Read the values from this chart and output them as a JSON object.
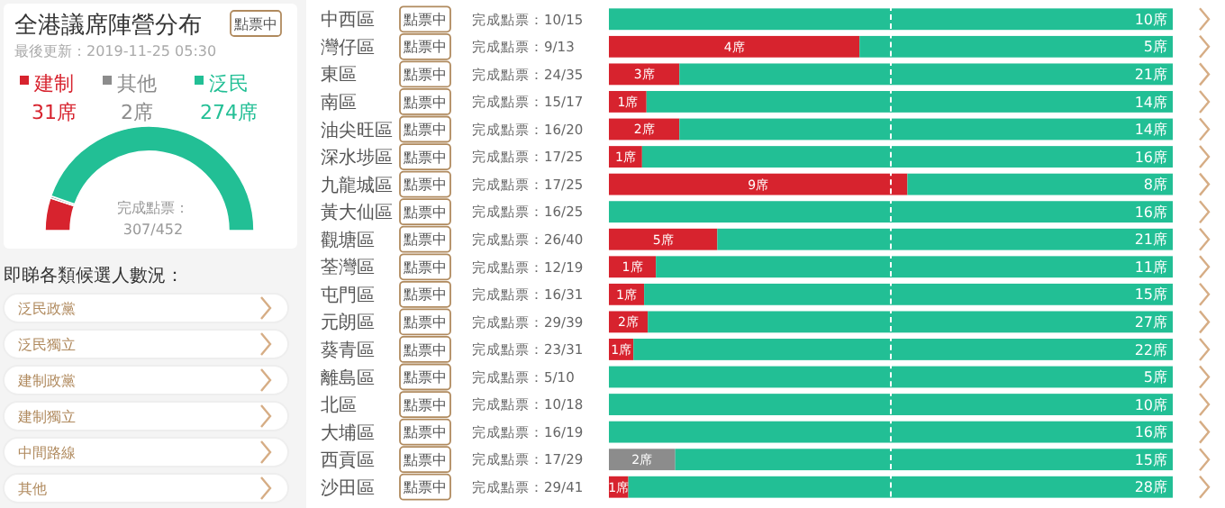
{
  "chart_data": [
    {
      "type": "donut",
      "title": "全港議席陣營分布",
      "subtitle": "最後更新：2019-11-25 05:30",
      "categories": [
        "建制",
        "其他",
        "泛民"
      ],
      "values": [
        31,
        2,
        274
      ],
      "colors": [
        "#d7232e",
        "#8c8c8c",
        "#22bf95"
      ],
      "value_labels": [
        "31席",
        "2席",
        "274席"
      ],
      "legend": "top",
      "annotations": [
        "點票中",
        "完成點票：307/452"
      ]
    },
    {
      "type": "other",
      "title": "即睇各類候選人數況：",
      "annotations": [
        "泛民政黨",
        "泛民獨立",
        "建制政黨",
        "建制獨立",
        "中間路線",
        "其他"
      ]
    },
    {
      "type": "bar",
      "orientation": "horizontal",
      "stacked": true,
      "categories": [
        "中西區"
      ],
      "series": [
        {
          "color": "#22bf95",
          "values": [
            10
          ],
          "value_labels": [
            "10席"
          ]
        }
      ],
      "ref_lines": [
        {
          "axis": "x",
          "value": 5,
          "color": "#ffffff",
          "line_style": "dashed"
        }
      ],
      "annotations": [
        "點票中",
        "完成點票：10/15"
      ]
    },
    {
      "type": "bar",
      "orientation": "horizontal",
      "stacked": true,
      "categories": [
        "灣仔區"
      ],
      "series": [
        {
          "color": "#d7232e",
          "values": [
            4
          ],
          "value_labels": [
            "4席"
          ]
        },
        {
          "color": "#22bf95",
          "values": [
            5
          ],
          "value_labels": [
            "5席"
          ]
        }
      ],
      "ref_lines": [
        {
          "axis": "x",
          "value": 4.5,
          "color": "#ffffff",
          "line_style": "dashed"
        }
      ],
      "annotations": [
        "點票中",
        "完成點票：9/13"
      ]
    },
    {
      "type": "bar",
      "orientation": "horizontal",
      "stacked": true,
      "categories": [
        "東區"
      ],
      "series": [
        {
          "color": "#d7232e",
          "values": [
            3
          ],
          "value_labels": [
            "3席"
          ]
        },
        {
          "color": "#22bf95",
          "values": [
            21
          ],
          "value_labels": [
            "21席"
          ]
        }
      ],
      "ref_lines": [
        {
          "axis": "x",
          "value": 12,
          "color": "#ffffff",
          "line_style": "dashed"
        }
      ],
      "annotations": [
        "點票中",
        "完成點票：24/35"
      ]
    },
    {
      "type": "bar",
      "orientation": "horizontal",
      "stacked": true,
      "categories": [
        "南區"
      ],
      "series": [
        {
          "color": "#d7232e",
          "values": [
            1
          ],
          "value_labels": [
            "1席"
          ]
        },
        {
          "color": "#22bf95",
          "values": [
            14
          ],
          "value_labels": [
            "14席"
          ]
        }
      ],
      "ref_lines": [
        {
          "axis": "x",
          "value": 7.5,
          "color": "#ffffff",
          "line_style": "dashed"
        }
      ],
      "annotations": [
        "點票中",
        "完成點票：15/17"
      ]
    },
    {
      "type": "bar",
      "orientation": "horizontal",
      "stacked": true,
      "categories": [
        "油尖旺區"
      ],
      "series": [
        {
          "color": "#d7232e",
          "values": [
            2
          ],
          "value_labels": [
            "2席"
          ]
        },
        {
          "color": "#22bf95",
          "values": [
            14
          ],
          "value_labels": [
            "14席"
          ]
        }
      ],
      "ref_lines": [
        {
          "axis": "x",
          "value": 8,
          "color": "#ffffff",
          "line_style": "dashed"
        }
      ],
      "annotations": [
        "點票中",
        "完成點票：16/20"
      ]
    },
    {
      "type": "bar",
      "orientation": "horizontal",
      "stacked": true,
      "categories": [
        "深水埗區"
      ],
      "series": [
        {
          "color": "#d7232e",
          "values": [
            1
          ],
          "value_labels": [
            "1席"
          ]
        },
        {
          "color": "#22bf95",
          "values": [
            16
          ],
          "value_labels": [
            "16席"
          ]
        }
      ],
      "ref_lines": [
        {
          "axis": "x",
          "value": 8.5,
          "color": "#ffffff",
          "line_style": "dashed"
        }
      ],
      "annotations": [
        "點票中",
        "完成點票：17/25"
      ]
    },
    {
      "type": "bar",
      "orientation": "horizontal",
      "stacked": true,
      "categories": [
        "九龍城區"
      ],
      "series": [
        {
          "color": "#d7232e",
          "values": [
            9
          ],
          "value_labels": [
            "9席"
          ]
        },
        {
          "color": "#22bf95",
          "values": [
            8
          ],
          "value_labels": [
            "8席"
          ]
        }
      ],
      "ref_lines": [
        {
          "axis": "x",
          "value": 8.5,
          "color": "#ffffff",
          "line_style": "dashed"
        }
      ],
      "annotations": [
        "點票中",
        "完成點票：17/25"
      ]
    },
    {
      "type": "bar",
      "orientation": "horizontal",
      "stacked": true,
      "categories": [
        "黃大仙區"
      ],
      "series": [
        {
          "color": "#22bf95",
          "values": [
            16
          ],
          "value_labels": [
            "16席"
          ]
        }
      ],
      "ref_lines": [
        {
          "axis": "x",
          "value": 8,
          "color": "#ffffff",
          "line_style": "dashed"
        }
      ],
      "annotations": [
        "點票中",
        "完成點票：16/25"
      ]
    },
    {
      "type": "bar",
      "orientation": "horizontal",
      "stacked": true,
      "categories": [
        "觀塘區"
      ],
      "series": [
        {
          "color": "#d7232e",
          "values": [
            5
          ],
          "value_labels": [
            "5席"
          ]
        },
        {
          "color": "#22bf95",
          "values": [
            21
          ],
          "value_labels": [
            "21席"
          ]
        }
      ],
      "ref_lines": [
        {
          "axis": "x",
          "value": 13,
          "color": "#ffffff",
          "line_style": "dashed"
        }
      ],
      "annotations": [
        "點票中",
        "完成點票：26/40"
      ]
    },
    {
      "type": "bar",
      "orientation": "horizontal",
      "stacked": true,
      "categories": [
        "荃灣區"
      ],
      "series": [
        {
          "color": "#d7232e",
          "values": [
            1
          ],
          "value_labels": [
            "1席"
          ]
        },
        {
          "color": "#22bf95",
          "values": [
            11
          ],
          "value_labels": [
            "11席"
          ]
        }
      ],
      "ref_lines": [
        {
          "axis": "x",
          "value": 6,
          "color": "#ffffff",
          "line_style": "dashed"
        }
      ],
      "annotations": [
        "點票中",
        "完成點票：12/19"
      ]
    },
    {
      "type": "bar",
      "orientation": "horizontal",
      "stacked": true,
      "categories": [
        "屯門區"
      ],
      "series": [
        {
          "color": "#d7232e",
          "values": [
            1
          ],
          "value_labels": [
            "1席"
          ]
        },
        {
          "color": "#22bf95",
          "values": [
            15
          ],
          "value_labels": [
            "15席"
          ]
        }
      ],
      "ref_lines": [
        {
          "axis": "x",
          "value": 8,
          "color": "#ffffff",
          "line_style": "dashed"
        }
      ],
      "annotations": [
        "點票中",
        "完成點票：16/31"
      ]
    },
    {
      "type": "bar",
      "orientation": "horizontal",
      "stacked": true,
      "categories": [
        "元朗區"
      ],
      "series": [
        {
          "color": "#d7232e",
          "values": [
            2
          ],
          "value_labels": [
            "2席"
          ]
        },
        {
          "color": "#22bf95",
          "values": [
            27
          ],
          "value_labels": [
            "27席"
          ]
        }
      ],
      "ref_lines": [
        {
          "axis": "x",
          "value": 14.5,
          "color": "#ffffff",
          "line_style": "dashed"
        }
      ],
      "annotations": [
        "點票中",
        "完成點票：29/39"
      ]
    },
    {
      "type": "bar",
      "orientation": "horizontal",
      "stacked": true,
      "categories": [
        "葵青區"
      ],
      "series": [
        {
          "color": "#d7232e",
          "values": [
            1
          ],
          "value_labels": [
            "1席"
          ]
        },
        {
          "color": "#22bf95",
          "values": [
            22
          ],
          "value_labels": [
            "22席"
          ]
        }
      ],
      "ref_lines": [
        {
          "axis": "x",
          "value": 11.5,
          "color": "#ffffff",
          "line_style": "dashed"
        }
      ],
      "annotations": [
        "點票中",
        "完成點票：23/31"
      ]
    },
    {
      "type": "bar",
      "orientation": "horizontal",
      "stacked": true,
      "categories": [
        "離島區"
      ],
      "series": [
        {
          "color": "#22bf95",
          "values": [
            5
          ],
          "value_labels": [
            "5席"
          ]
        }
      ],
      "ref_lines": [
        {
          "axis": "x",
          "value": 2.5,
          "color": "#ffffff",
          "line_style": "dashed"
        }
      ],
      "annotations": [
        "點票中",
        "完成點票：5/10"
      ]
    },
    {
      "type": "bar",
      "orientation": "horizontal",
      "stacked": true,
      "categories": [
        "北區"
      ],
      "series": [
        {
          "color": "#22bf95",
          "values": [
            10
          ],
          "value_labels": [
            "10席"
          ]
        }
      ],
      "ref_lines": [
        {
          "axis": "x",
          "value": 5,
          "color": "#ffffff",
          "line_style": "dashed"
        }
      ],
      "annotations": [
        "點票中",
        "完成點票：10/18"
      ]
    },
    {
      "type": "bar",
      "orientation": "horizontal",
      "stacked": true,
      "categories": [
        "大埔區"
      ],
      "series": [
        {
          "color": "#22bf95",
          "values": [
            16
          ],
          "value_labels": [
            "16席"
          ]
        }
      ],
      "ref_lines": [
        {
          "axis": "x",
          "value": 8,
          "color": "#ffffff",
          "line_style": "dashed"
        }
      ],
      "annotations": [
        "點票中",
        "完成點票：16/19"
      ]
    },
    {
      "type": "bar",
      "orientation": "horizontal",
      "stacked": true,
      "categories": [
        "西貢區"
      ],
      "series": [
        {
          "color": "#8c8c8c",
          "values": [
            2
          ],
          "value_labels": [
            "2席"
          ]
        },
        {
          "color": "#22bf95",
          "values": [
            15
          ],
          "value_labels": [
            "15席"
          ]
        }
      ],
      "ref_lines": [
        {
          "axis": "x",
          "value": 8.5,
          "color": "#ffffff",
          "line_style": "dashed"
        }
      ],
      "annotations": [
        "點票中",
        "完成點票：17/29"
      ]
    },
    {
      "type": "bar",
      "orientation": "horizontal",
      "stacked": true,
      "categories": [
        "沙田區"
      ],
      "series": [
        {
          "color": "#d7232e",
          "values": [
            1
          ],
          "value_labels": [
            "1席"
          ]
        },
        {
          "color": "#22bf95",
          "values": [
            28
          ],
          "value_labels": [
            "28席"
          ]
        }
      ],
      "ref_lines": [
        {
          "axis": "x",
          "value": 14.5,
          "color": "#ffffff",
          "line_style": "dashed"
        }
      ],
      "annotations": [
        "點票中",
        "完成點票：29/41"
      ]
    }
  ]
}
